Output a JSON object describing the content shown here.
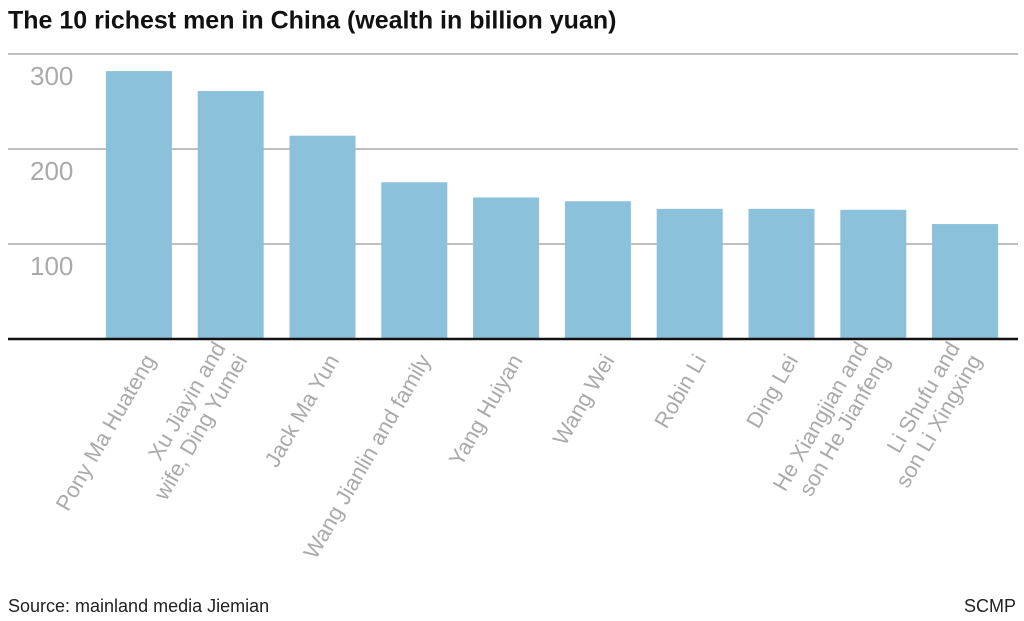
{
  "chart_data": {
    "type": "bar",
    "title": "The 10 richest men in China (wealth in billion yuan)",
    "categories": [
      "Pony Ma Huateng",
      "Xu Jiayin and\nwife, Ding Yumei",
      "Jack Ma Yun",
      "Wang Jianlin and family",
      "Yang Huiyan",
      "Wang Wei",
      "Robin Li",
      "Ding Lei",
      "He Xiangjian and\nson He Jianfeng",
      "Li Shufu and\nson Li Xingxing"
    ],
    "values": [
      282,
      261,
      214,
      165,
      149,
      145,
      137,
      137,
      136,
      121
    ],
    "color": "#8bc1da",
    "ylim": [
      0,
      300
    ],
    "yticks": [
      100,
      200,
      300
    ],
    "grid": true,
    "source": "Source: mainland media Jiemian",
    "credit": "SCMP"
  }
}
